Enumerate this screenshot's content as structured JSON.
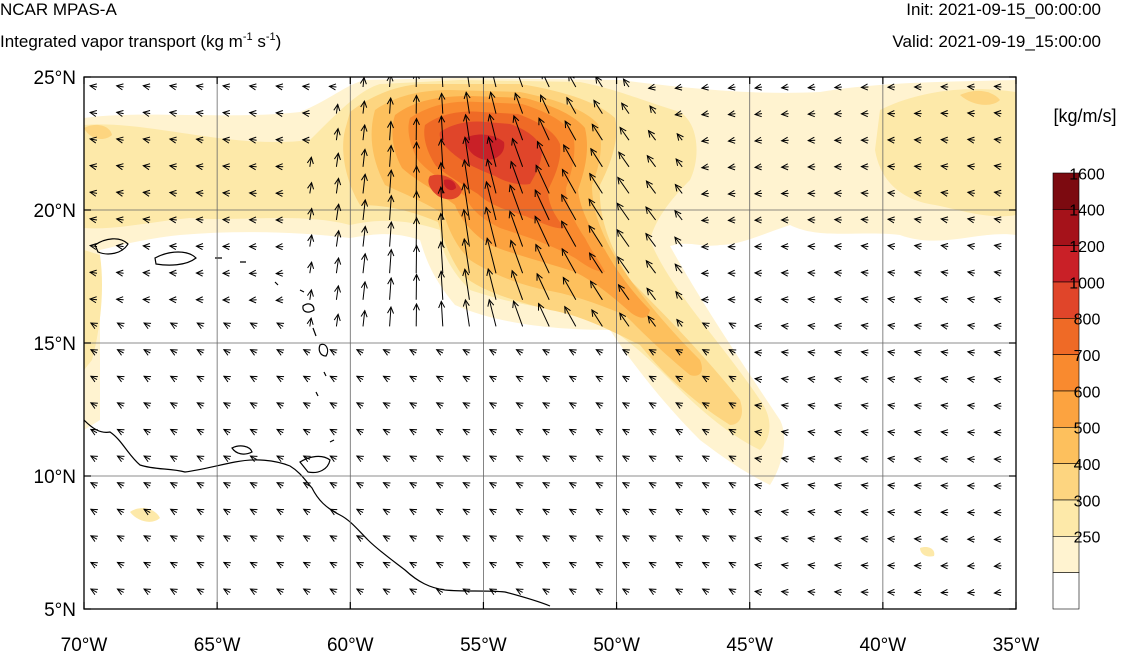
{
  "header": {
    "model": "NCAR MPAS-A",
    "variable_prefix": "Integrated vapor transport (kg m",
    "variable_exp1": "-1",
    "variable_mid": " s",
    "variable_exp2": "-1",
    "variable_suffix": ")",
    "init": "Init: 2021-09-15_00:00:00",
    "valid": "Valid: 2021-09-19_15:00:00"
  },
  "map": {
    "lon_range": [
      -70,
      -35
    ],
    "lat_range": [
      5,
      25
    ],
    "lon_ticks": [
      -70,
      -65,
      -60,
      -55,
      -50,
      -45,
      -40,
      -35
    ],
    "lon_tick_labels": [
      "70°W",
      "65°W",
      "60°W",
      "55°W",
      "50°W",
      "45°W",
      "40°W",
      "35°W"
    ],
    "lat_ticks": [
      5,
      10,
      15,
      20,
      25
    ],
    "lat_tick_labels": [
      "5°N",
      "10°N",
      "15°N",
      "20°N",
      "25°N"
    ],
    "gridlines": true
  },
  "colorbar": {
    "title": "[kg/m/s]",
    "levels": [
      250,
      300,
      400,
      500,
      600,
      700,
      800,
      1000,
      1200,
      1400,
      1600
    ],
    "level_labels": [
      "250",
      "300",
      "400",
      "500",
      "600",
      "700",
      "800",
      "1000",
      "1200",
      "1400",
      "1600"
    ],
    "colors": [
      "#ffffff",
      "#fff3d0",
      "#fde9a9",
      "#fdd580",
      "#fdc05d",
      "#fca340",
      "#f98a2f",
      "#ef6a26",
      "#e0452a",
      "#c92027",
      "#a5121a",
      "#7c0a10"
    ]
  }
}
